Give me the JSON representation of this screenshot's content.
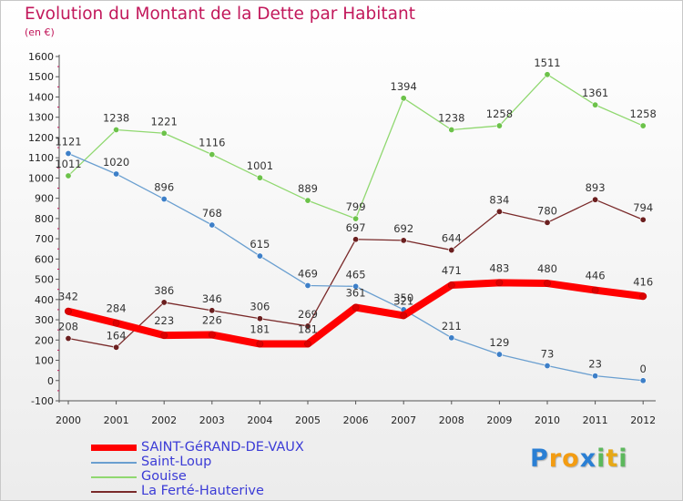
{
  "title": "Evolution du Montant de la Dette par Habitant",
  "unit": "(en €)",
  "logo": {
    "letters": [
      "P",
      "r",
      "o",
      "x",
      "i",
      "t",
      "i"
    ],
    "colors": [
      "#2a7fd4",
      "#f39c12",
      "#f39c12",
      "#2a7fd4",
      "#5cb85c",
      "#e6a817",
      "#5cb85c"
    ]
  },
  "chart_data": {
    "type": "line",
    "x": [
      "2000",
      "2001",
      "2002",
      "2003",
      "2004",
      "2005",
      "2006",
      "2007",
      "2008",
      "2009",
      "2010",
      "2011",
      "2012"
    ],
    "ylim": [
      -100,
      1600
    ],
    "yticks": [
      -100,
      0,
      100,
      200,
      300,
      400,
      500,
      600,
      700,
      800,
      900,
      1000,
      1100,
      1200,
      1300,
      1400,
      1500,
      1600
    ],
    "grid": false,
    "legend_position": "bottom-left",
    "series": [
      {
        "name": "SAINT-GéRAND-DE-VAUX",
        "color": "#ff0000",
        "marker": "#dd0000",
        "width": 8,
        "values": [
          342,
          284,
          223,
          226,
          181,
          181,
          361,
          321,
          471,
          483,
          480,
          446,
          416
        ]
      },
      {
        "name": "Saint-Loup",
        "color": "#6a9fd0",
        "marker": "#3d7fc8",
        "width": 1.3,
        "values": [
          1121,
          1020,
          896,
          768,
          615,
          469,
          465,
          350,
          211,
          129,
          73,
          23,
          0
        ]
      },
      {
        "name": "Gouise",
        "color": "#90d870",
        "marker": "#6cc24a",
        "width": 1.3,
        "values": [
          1011,
          1238,
          1221,
          1116,
          1001,
          889,
          799,
          1394,
          1238,
          1258,
          1511,
          1361,
          1258
        ]
      },
      {
        "name": "La Ferté-Hauterive",
        "color": "#7a2a2a",
        "marker": "#6b1f1f",
        "width": 1.3,
        "values": [
          208,
          164,
          386,
          346,
          306,
          269,
          697,
          692,
          644,
          834,
          780,
          893,
          794
        ]
      }
    ]
  }
}
